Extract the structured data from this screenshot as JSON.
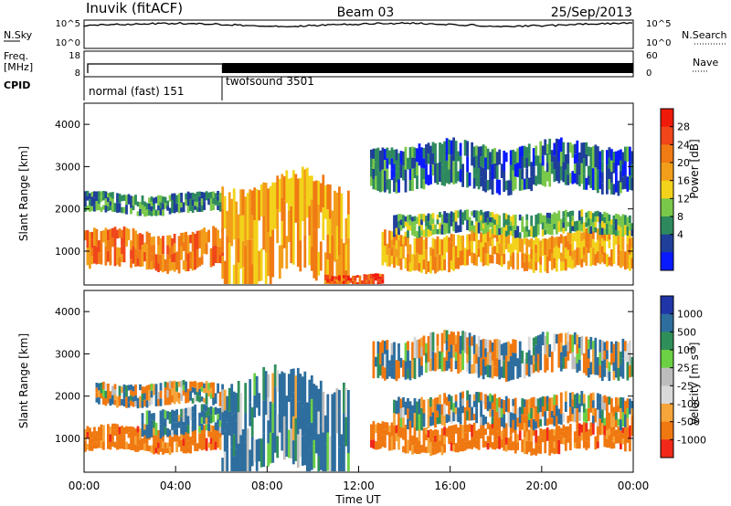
{
  "header": {
    "station": "Inuvik (fitACF)",
    "beam": "Beam 03",
    "date": "25/Sep/2013"
  },
  "summary": {
    "left_labels": [
      "N.Sky",
      "Freq.",
      "[MHz]",
      "CPID"
    ],
    "right_labels": [
      "N.Search",
      "Nave"
    ],
    "sky_ticks": [
      "10^5",
      "10^0"
    ],
    "search_ticks": [
      "10^5",
      "10^0"
    ],
    "freq_ticks": [
      "18",
      "8"
    ],
    "nave_ticks": [
      "60",
      "0"
    ],
    "cpid_segments": [
      {
        "label": "normal (fast) 151",
        "start_hour": 0.0,
        "end_hour": 6.05
      },
      {
        "label": "twofsound 3501",
        "start_hour": 6.05,
        "end_hour": 24.0
      }
    ]
  },
  "colors": {
    "power_scale": [
      "#0a1aff",
      "#1f3f9a",
      "#2e8a5e",
      "#7ac84a",
      "#f2d21a",
      "#f29e1a",
      "#f07a14",
      "#f0461a",
      "#f01a0a"
    ],
    "velocity_scale": [
      "#2035a8",
      "#2d6e9e",
      "#2f8f5a",
      "#6bd044",
      "#bdbdbd",
      "#d9d9d9",
      "#f6a53a",
      "#f07810",
      "#f0281a"
    ]
  },
  "chart_data": [
    {
      "type": "heatmap",
      "name": "power",
      "ylabel": "Slant Range [km]",
      "xlabel": "",
      "xlim": [
        0,
        24
      ],
      "ylim": [
        200,
        4500
      ],
      "yticks": [
        "1000",
        "2000",
        "3000",
        "4000"
      ],
      "colorbar_title": "Power [dB]",
      "colorbar_ticks": [
        "28",
        "24",
        "20",
        "16",
        "12",
        "8",
        "4"
      ],
      "colorbar_range": [
        0,
        32
      ],
      "bands": [
        {
          "x0": 0.0,
          "x1": 6.0,
          "y0": 600,
          "y1": 1450,
          "value": 24
        },
        {
          "x0": 0.0,
          "x1": 6.0,
          "y0": 1900,
          "y1": 2350,
          "value": 8
        },
        {
          "x0": 6.0,
          "x1": 11.5,
          "y0": 300,
          "y1": 2600,
          "value": 20
        },
        {
          "x0": 10.5,
          "x1": 13.0,
          "y0": 200,
          "y1": 450,
          "value": 27
        },
        {
          "x0": 13.0,
          "x1": 24.0,
          "y0": 600,
          "y1": 1400,
          "value": 20
        },
        {
          "x0": 13.5,
          "x1": 24.0,
          "y0": 1400,
          "y1": 1900,
          "value": 10
        },
        {
          "x0": 12.5,
          "x1": 24.0,
          "y0": 2500,
          "y1": 3500,
          "value": 6
        }
      ]
    },
    {
      "type": "heatmap",
      "name": "velocity",
      "ylabel": "Slant Range [km]",
      "xlabel": "Time UT",
      "xlim": [
        0,
        24
      ],
      "ylim": [
        200,
        4500
      ],
      "xticks": [
        "00:00",
        "04:00",
        "08:00",
        "12:00",
        "16:00",
        "20:00",
        "00:00"
      ],
      "yticks": [
        "1000",
        "2000",
        "3000",
        "4000"
      ],
      "colorbar_title": "Velocity [m s",
      "colorbar_unit_exponent": "-1",
      "colorbar_close": "]",
      "colorbar_ticks": [
        "1000",
        "500",
        "100",
        "25",
        "-25",
        "-100",
        "-500",
        "-1000"
      ],
      "bands": [
        {
          "x0": 0.0,
          "x1": 6.0,
          "y0": 700,
          "y1": 1250,
          "value": -300
        },
        {
          "x0": 2.5,
          "x1": 6.0,
          "y0": 1100,
          "y1": 1700,
          "value": 200
        },
        {
          "x0": 0.5,
          "x1": 6.0,
          "y0": 1800,
          "y1": 2300,
          "value": 0
        },
        {
          "x0": 6.0,
          "x1": 11.5,
          "y0": 300,
          "y1": 2400,
          "value": 200
        },
        {
          "x0": 12.5,
          "x1": 24.0,
          "y0": 700,
          "y1": 1300,
          "value": -300
        },
        {
          "x0": 13.5,
          "x1": 24.0,
          "y0": 1300,
          "y1": 2000,
          "value": 0
        },
        {
          "x0": 12.5,
          "x1": 24.0,
          "y0": 2500,
          "y1": 3400,
          "value": 0
        }
      ]
    }
  ]
}
